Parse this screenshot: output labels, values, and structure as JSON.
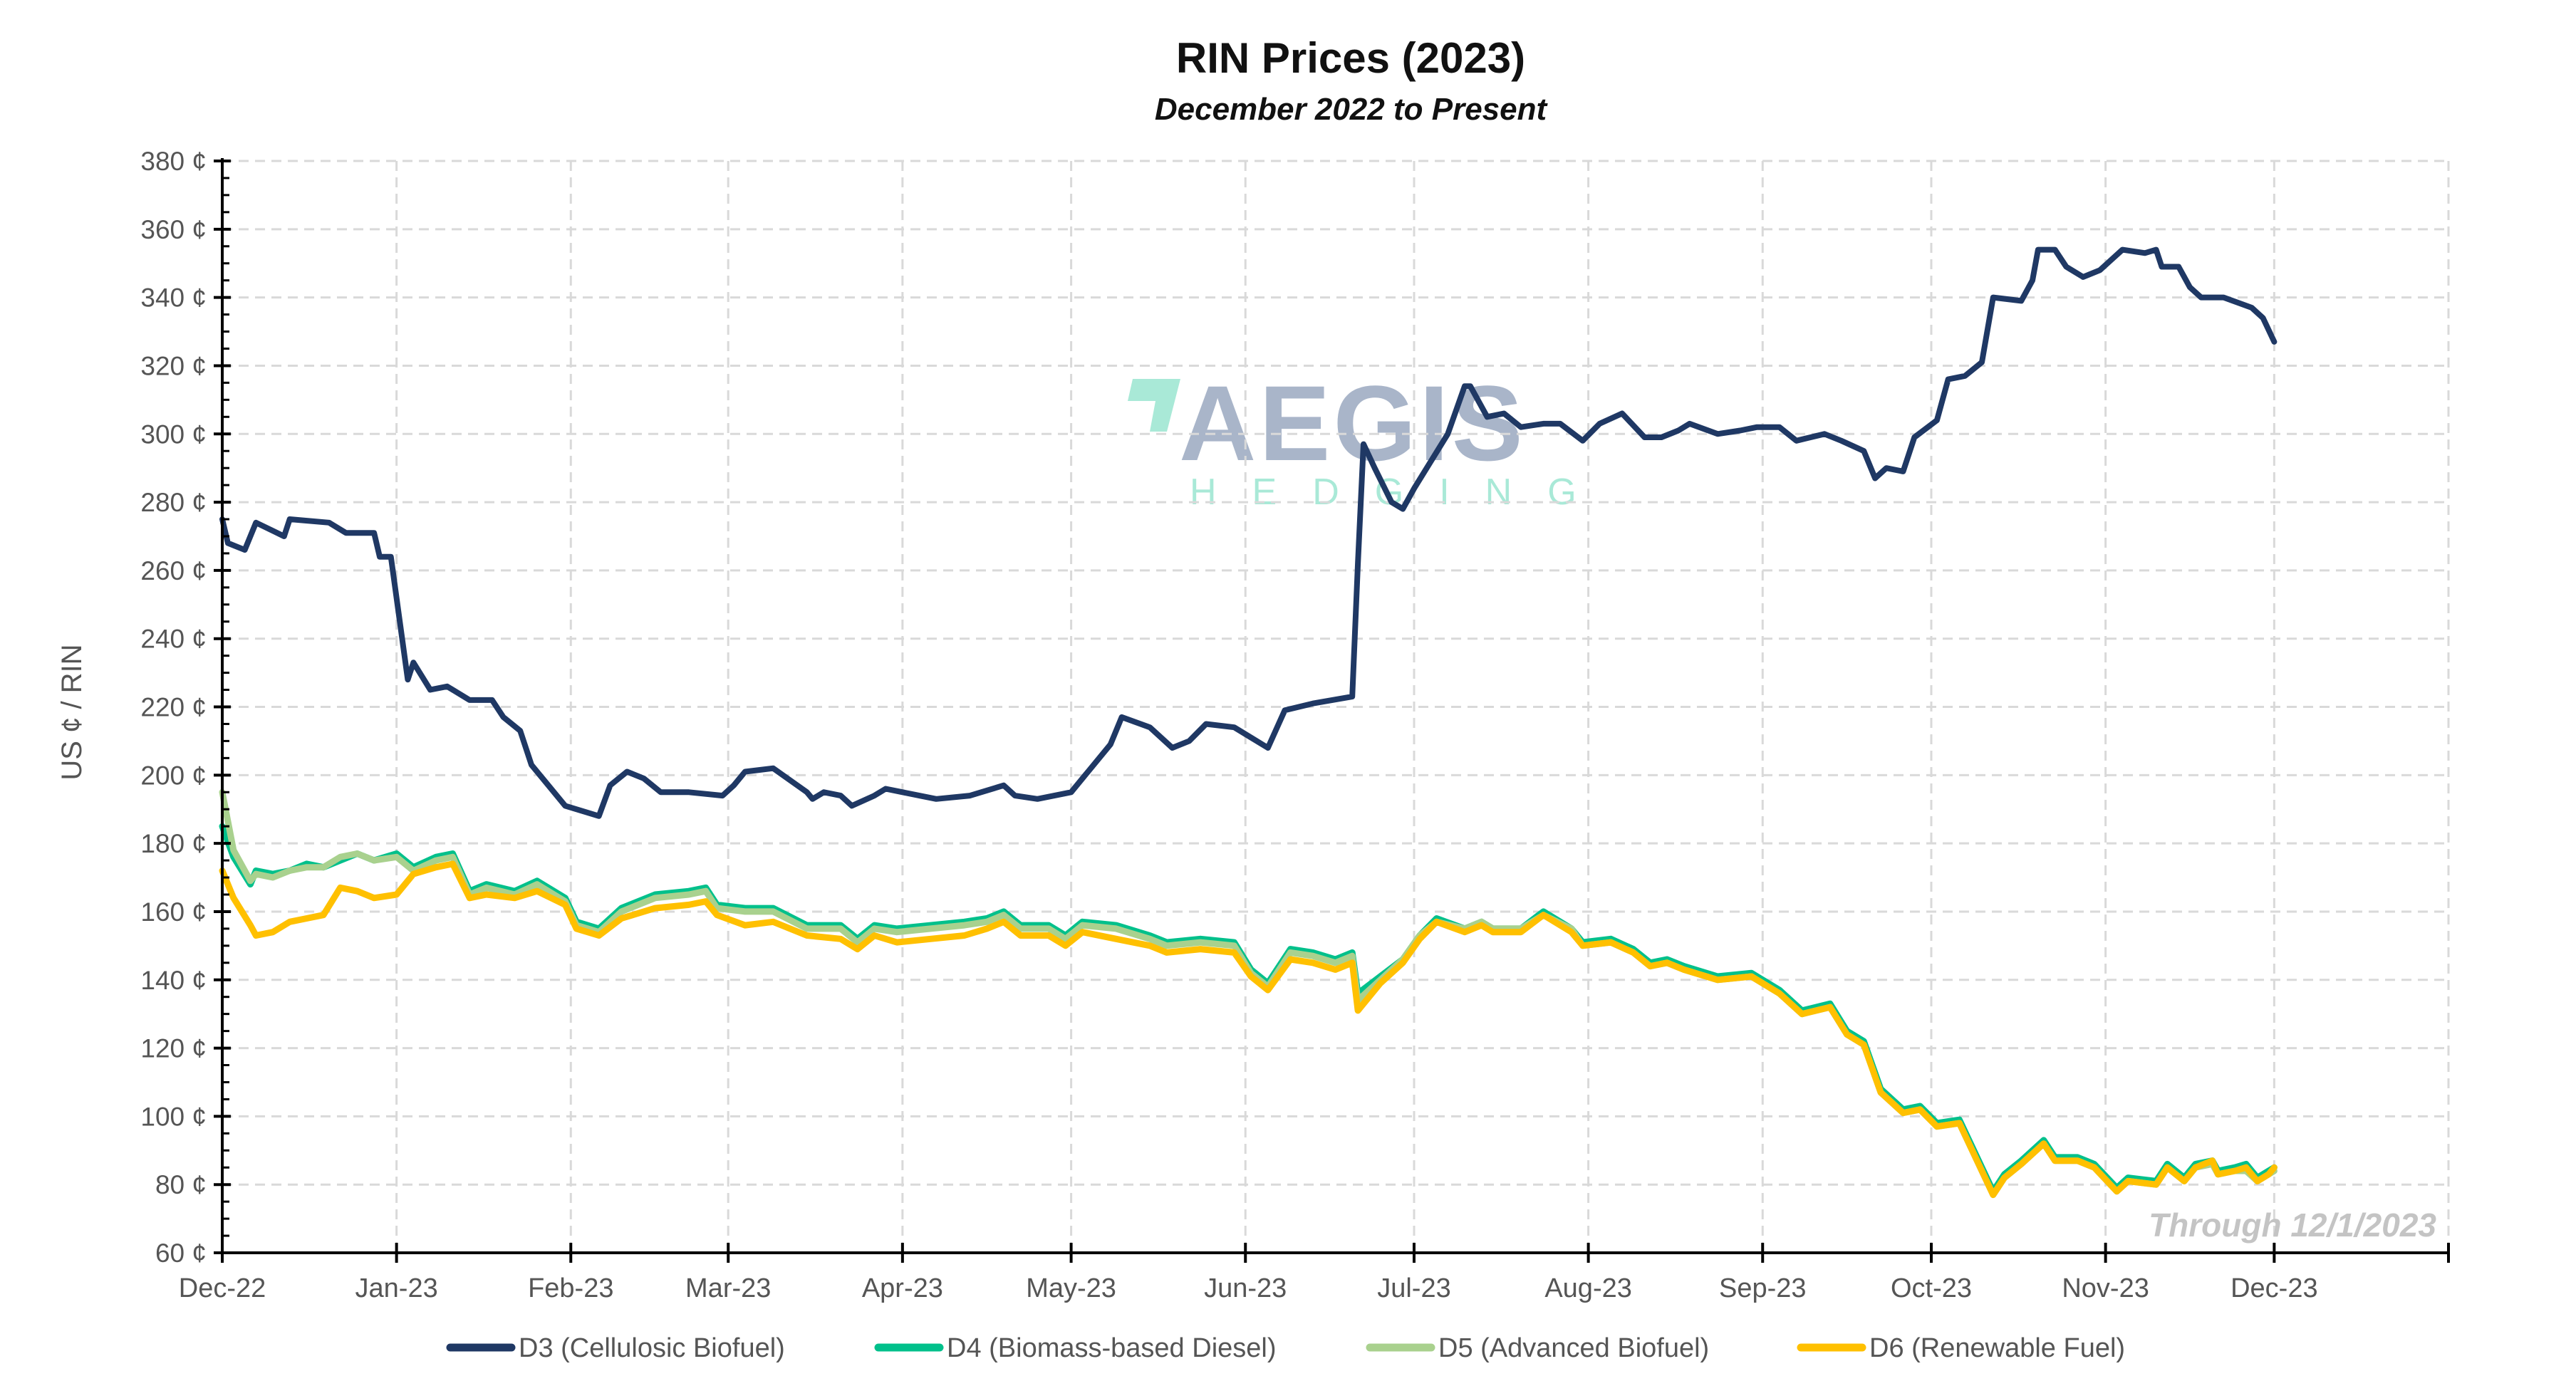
{
  "chart_data": {
    "type": "line",
    "title": "RIN Prices (2023)",
    "subtitle": "December 2022 to Present",
    "ylabel": "US ¢ / RIN",
    "xlabel": "",
    "ylim": [
      60,
      380
    ],
    "yticks": [
      60,
      80,
      100,
      120,
      140,
      160,
      180,
      200,
      220,
      240,
      260,
      280,
      300,
      320,
      340,
      360,
      380
    ],
    "ytick_suffix": " ¢",
    "xlim": [
      "2022-12-01",
      "2024-01-01"
    ],
    "xticks": [
      {
        "date": "2022-12-01",
        "label": "Dec-22"
      },
      {
        "date": "2023-01-01",
        "label": "Jan-23"
      },
      {
        "date": "2023-02-01",
        "label": "Feb-23"
      },
      {
        "date": "2023-03-01",
        "label": "Mar-23"
      },
      {
        "date": "2023-04-01",
        "label": "Apr-23"
      },
      {
        "date": "2023-05-01",
        "label": "May-23"
      },
      {
        "date": "2023-06-01",
        "label": "Jun-23"
      },
      {
        "date": "2023-07-01",
        "label": "Jul-23"
      },
      {
        "date": "2023-08-01",
        "label": "Aug-23"
      },
      {
        "date": "2023-09-01",
        "label": "Sep-23"
      },
      {
        "date": "2023-10-01",
        "label": "Oct-23"
      },
      {
        "date": "2023-11-01",
        "label": "Nov-23"
      },
      {
        "date": "2023-12-01",
        "label": "Dec-23"
      },
      {
        "date": "2024-01-01",
        "label": ""
      }
    ],
    "grid": true,
    "legend_position": "bottom",
    "annotation": "Through 12/1/2023",
    "watermark": {
      "main": "AEGIS",
      "sub": "HEDGING"
    },
    "d3": {
      "name": "D3 (Cellulosic Biofuel)",
      "color": "#1f3864",
      "x": [
        "2022-12-01",
        "2022-12-02",
        "2022-12-05",
        "2022-12-07",
        "2022-12-12",
        "2022-12-13",
        "2022-12-20",
        "2022-12-23",
        "2022-12-28",
        "2022-12-29",
        "2022-12-31",
        "2023-01-03",
        "2023-01-04",
        "2023-01-07",
        "2023-01-10",
        "2023-01-14",
        "2023-01-18",
        "2023-01-20",
        "2023-01-23",
        "2023-01-25",
        "2023-01-27",
        "2023-01-31",
        "2023-02-06",
        "2023-02-08",
        "2023-02-11",
        "2023-02-14",
        "2023-02-17",
        "2023-02-22",
        "2023-02-28",
        "2023-03-02",
        "2023-03-04",
        "2023-03-09",
        "2023-03-15",
        "2023-03-16",
        "2023-03-18",
        "2023-03-21",
        "2023-03-23",
        "2023-03-27",
        "2023-03-29",
        "2023-04-04",
        "2023-04-07",
        "2023-04-13",
        "2023-04-19",
        "2023-04-21",
        "2023-04-25",
        "2023-05-01",
        "2023-05-03",
        "2023-05-08",
        "2023-05-10",
        "2023-05-15",
        "2023-05-19",
        "2023-05-22",
        "2023-05-25",
        "2023-05-30",
        "2023-06-02",
        "2023-06-05",
        "2023-06-08",
        "2023-06-13",
        "2023-06-20",
        "2023-06-21",
        "2023-06-22",
        "2023-06-24",
        "2023-06-27",
        "2023-06-29",
        "2023-07-01",
        "2023-07-07",
        "2023-07-10",
        "2023-07-11",
        "2023-07-14",
        "2023-07-17",
        "2023-07-20",
        "2023-07-24",
        "2023-07-27",
        "2023-07-31",
        "2023-08-03",
        "2023-08-07",
        "2023-08-11",
        "2023-08-14",
        "2023-08-17",
        "2023-08-19",
        "2023-08-24",
        "2023-08-28",
        "2023-08-31",
        "2023-09-04",
        "2023-09-07",
        "2023-09-12",
        "2023-09-15",
        "2023-09-19",
        "2023-09-21",
        "2023-09-23",
        "2023-09-26",
        "2023-09-28",
        "2023-10-02",
        "2023-10-04",
        "2023-10-07",
        "2023-10-10",
        "2023-10-12",
        "2023-10-17",
        "2023-10-19",
        "2023-10-20",
        "2023-10-23",
        "2023-10-25",
        "2023-10-28",
        "2023-10-31",
        "2023-11-02",
        "2023-11-04",
        "2023-11-08",
        "2023-11-10",
        "2023-11-11",
        "2023-11-14",
        "2023-11-16",
        "2023-11-18",
        "2023-11-22",
        "2023-11-27",
        "2023-11-29",
        "2023-12-01"
      ],
      "y": [
        275,
        268,
        266,
        274,
        270,
        275,
        274,
        271,
        271,
        264,
        264,
        228,
        233,
        225,
        226,
        222,
        222,
        217,
        213,
        203,
        199,
        191,
        188,
        197,
        201,
        199,
        195,
        195,
        194,
        197,
        201,
        202,
        195,
        193,
        195,
        194,
        191,
        194,
        196,
        194,
        193,
        194,
        197,
        194,
        193,
        195,
        199,
        209,
        217,
        214,
        208,
        210,
        215,
        214,
        211,
        208,
        219,
        221,
        223,
        262,
        297,
        290,
        280,
        278,
        284,
        300,
        314,
        314,
        305,
        306,
        302,
        303,
        303,
        298,
        303,
        306,
        299,
        299,
        301,
        303,
        300,
        301,
        302,
        302,
        298,
        300,
        298,
        295,
        287,
        290,
        289,
        299,
        304,
        316,
        317,
        321,
        340,
        339,
        345,
        354,
        354,
        349,
        346,
        348,
        351,
        354,
        353,
        354,
        349,
        349,
        343,
        340,
        340,
        337,
        334,
        327
      ]
    },
    "shared_x": [
      "2022-12-01",
      "2022-12-03",
      "2022-12-06",
      "2022-12-07",
      "2022-12-10",
      "2022-12-13",
      "2022-12-16",
      "2022-12-19",
      "2022-12-22",
      "2022-12-25",
      "2022-12-28",
      "2023-01-01",
      "2023-01-04",
      "2023-01-08",
      "2023-01-11",
      "2023-01-14",
      "2023-01-17",
      "2023-01-22",
      "2023-01-26",
      "2023-01-31",
      "2023-02-02",
      "2023-02-06",
      "2023-02-10",
      "2023-02-16",
      "2023-02-22",
      "2023-02-25",
      "2023-02-27",
      "2023-03-04",
      "2023-03-09",
      "2023-03-15",
      "2023-03-21",
      "2023-03-24",
      "2023-03-27",
      "2023-03-31",
      "2023-04-06",
      "2023-04-12",
      "2023-04-16",
      "2023-04-19",
      "2023-04-22",
      "2023-04-27",
      "2023-04-30",
      "2023-05-03",
      "2023-05-09",
      "2023-05-15",
      "2023-05-18",
      "2023-05-24",
      "2023-05-30",
      "2023-06-02",
      "2023-06-05",
      "2023-06-09",
      "2023-06-13",
      "2023-06-17",
      "2023-06-20",
      "2023-06-21",
      "2023-06-25",
      "2023-06-29",
      "2023-07-02",
      "2023-07-05",
      "2023-07-10",
      "2023-07-13",
      "2023-07-15",
      "2023-07-20",
      "2023-07-24",
      "2023-07-29",
      "2023-07-31",
      "2023-08-05",
      "2023-08-09",
      "2023-08-12",
      "2023-08-15",
      "2023-08-18",
      "2023-08-24",
      "2023-08-30",
      "2023-09-04",
      "2023-09-08",
      "2023-09-13",
      "2023-09-16",
      "2023-09-19",
      "2023-09-22",
      "2023-09-26",
      "2023-09-29",
      "2023-10-02",
      "2023-10-06",
      "2023-10-08",
      "2023-10-12",
      "2023-10-14",
      "2023-10-17",
      "2023-10-21",
      "2023-10-23",
      "2023-10-27",
      "2023-10-30",
      "2023-11-03",
      "2023-11-05",
      "2023-11-10",
      "2023-11-12",
      "2023-11-15",
      "2023-11-17",
      "2023-11-20",
      "2023-11-21",
      "2023-11-24",
      "2023-11-26",
      "2023-11-28",
      "2023-11-30",
      "2023-12-01"
    ],
    "d4": {
      "name": "D4 (Biomass-based Diesel)",
      "color": "#00c08b",
      "y": [
        185,
        176,
        168,
        172,
        171,
        172,
        174,
        173,
        175,
        177,
        175,
        177,
        173,
        176,
        177,
        166,
        168,
        166,
        169,
        164,
        157,
        155,
        161,
        165,
        166,
        167,
        162,
        161,
        161,
        156,
        156,
        152,
        156,
        155,
        156,
        157,
        158,
        160,
        156,
        156,
        153,
        157,
        156,
        153,
        151,
        152,
        151,
        143,
        139,
        149,
        148,
        146,
        148,
        136,
        141,
        146,
        153,
        158,
        155,
        157,
        155,
        155,
        160,
        155,
        151,
        152,
        149,
        145,
        146,
        144,
        141,
        142,
        137,
        131,
        133,
        125,
        122,
        108,
        102,
        103,
        98,
        99,
        92,
        78,
        83,
        87,
        93,
        88,
        88,
        86,
        79,
        82,
        81,
        86,
        82,
        86,
        87,
        84,
        85,
        86,
        82,
        84,
        85
      ]
    },
    "d5": {
      "name": "D5 (Advanced Biofuel)",
      "color": "#a9d18e",
      "y": [
        195,
        178,
        169,
        171,
        170,
        172,
        173,
        173,
        176,
        177,
        175,
        176,
        172,
        175,
        176,
        165,
        167,
        165,
        168,
        163,
        156,
        154,
        160,
        164,
        165,
        166,
        161,
        160,
        160,
        155,
        155,
        151,
        155,
        154,
        155,
        156,
        157,
        159,
        155,
        155,
        152,
        156,
        155,
        152,
        150,
        151,
        150,
        142,
        138,
        148,
        147,
        145,
        147,
        134,
        140,
        146,
        153,
        157,
        155,
        157,
        155,
        155,
        159,
        155,
        150,
        151,
        148,
        144,
        145,
        143,
        140,
        141,
        136,
        130,
        132,
        124,
        121,
        107,
        101,
        102,
        97,
        98,
        91,
        77,
        82,
        86,
        92,
        87,
        87,
        85,
        78,
        81,
        80,
        85,
        81,
        85,
        86,
        83,
        84,
        84,
        81,
        83,
        84
      ]
    },
    "d6": {
      "name": "D6 (Renewable Fuel)",
      "color": "#ffc000",
      "y": [
        172,
        164,
        156,
        153,
        154,
        157,
        158,
        159,
        167,
        166,
        164,
        165,
        171,
        173,
        174,
        164,
        165,
        164,
        166,
        162,
        155,
        153,
        158,
        161,
        162,
        163,
        159,
        156,
        157,
        153,
        152,
        149,
        153,
        151,
        152,
        153,
        155,
        157,
        153,
        153,
        150,
        154,
        152,
        150,
        148,
        149,
        148,
        141,
        137,
        146,
        145,
        143,
        145,
        131,
        139,
        145,
        152,
        157,
        154,
        156,
        154,
        154,
        159,
        154,
        150,
        151,
        148,
        144,
        145,
        143,
        140,
        141,
        136,
        130,
        132,
        124,
        121,
        107,
        101,
        102,
        97,
        98,
        91,
        77,
        82,
        86,
        92,
        87,
        87,
        85,
        78,
        81,
        80,
        85,
        81,
        85,
        87,
        83,
        84,
        85,
        81,
        83,
        85
      ]
    }
  }
}
